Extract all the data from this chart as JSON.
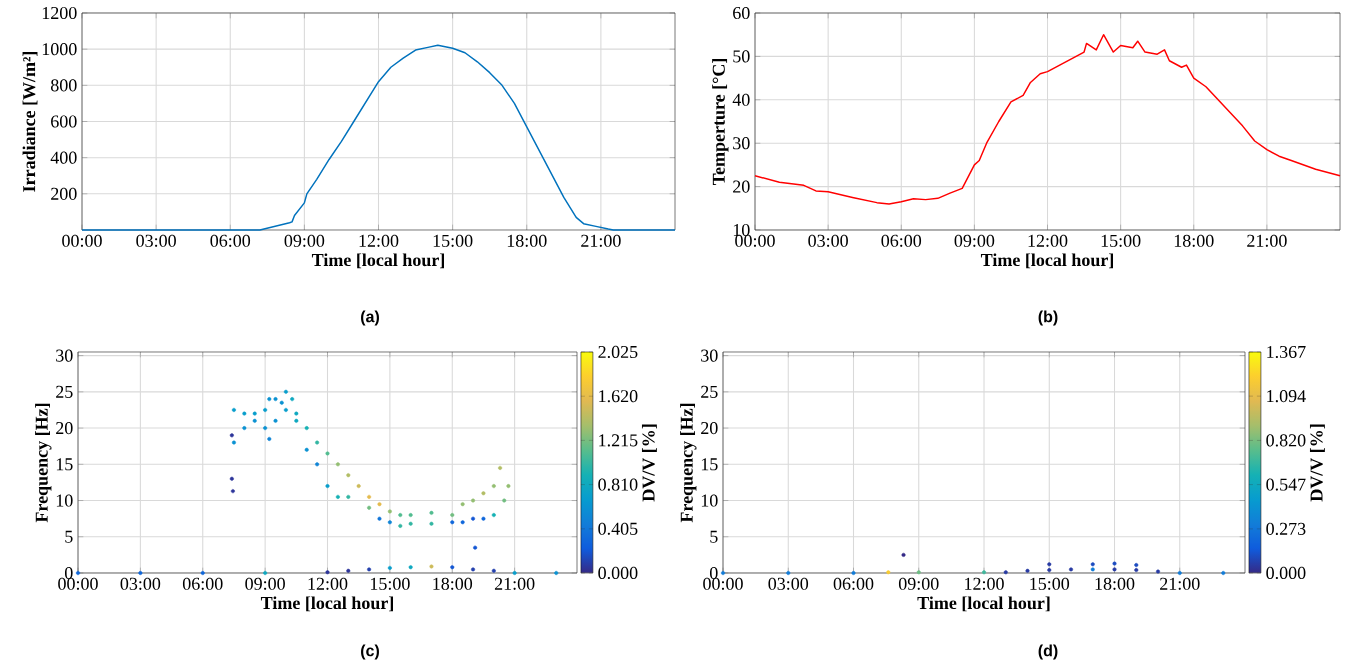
{
  "chart_data": [
    {
      "type": "line",
      "xlabel": "Time [local hour]",
      "ylabel": "Irradiance [W/m²]",
      "annotations": [
        "(a)"
      ],
      "color": "#0072bd",
      "grid": true,
      "xlim": [
        0,
        24
      ],
      "ylim": [
        0,
        1200
      ],
      "xticks": [
        {
          "value": 0,
          "label": "00:00"
        },
        {
          "value": 3,
          "label": "03:00"
        },
        {
          "value": 6,
          "label": "06:00"
        },
        {
          "value": 9,
          "label": "09:00"
        },
        {
          "value": 12,
          "label": "12:00"
        },
        {
          "value": 15,
          "label": "15:00"
        },
        {
          "value": 18,
          "label": "18:00"
        },
        {
          "value": 21,
          "label": "21:00"
        }
      ],
      "yticks": [
        200,
        400,
        600,
        800,
        1000,
        1200
      ],
      "x": [
        0,
        7.2,
        8.4,
        8.5,
        8.6,
        9.0,
        9.1,
        9.5,
        10,
        10.5,
        11,
        11.5,
        12,
        12.5,
        13,
        13.5,
        14,
        14.4,
        15,
        15.5,
        16,
        16.5,
        17,
        17.5,
        18,
        18.5,
        19,
        19.5,
        20,
        20.3,
        20.8,
        21.3,
        21.5,
        24
      ],
      "values": [
        0,
        0,
        40,
        45,
        80,
        150,
        200,
        280,
        390,
        490,
        600,
        710,
        820,
        900,
        950,
        995,
        1010,
        1022,
        1005,
        980,
        930,
        870,
        800,
        700,
        570,
        440,
        310,
        180,
        70,
        35,
        20,
        5,
        0,
        0
      ]
    },
    {
      "type": "line",
      "xlabel": "Time [local hour]",
      "ylabel": "Temperture [°C]",
      "annotations": [
        "(b)"
      ],
      "color": "#ff0000",
      "grid": true,
      "xlim": [
        0,
        24
      ],
      "ylim": [
        10,
        60
      ],
      "xticks": [
        {
          "value": 0,
          "label": "00:00"
        },
        {
          "value": 3,
          "label": "03:00"
        },
        {
          "value": 6,
          "label": "06:00"
        },
        {
          "value": 9,
          "label": "09:00"
        },
        {
          "value": 12,
          "label": "12:00"
        },
        {
          "value": 15,
          "label": "15:00"
        },
        {
          "value": 18,
          "label": "18:00"
        },
        {
          "value": 21,
          "label": "21:00"
        }
      ],
      "yticks": [
        10,
        20,
        30,
        40,
        50,
        60
      ],
      "x": [
        0,
        1,
        2,
        2.5,
        3,
        4,
        5,
        5.5,
        6,
        6.5,
        7,
        7.5,
        8,
        8.5,
        9,
        9.2,
        9.5,
        10,
        10.5,
        11,
        11.3,
        11.7,
        12,
        12.5,
        13,
        13.5,
        13.6,
        14,
        14.3,
        14.7,
        15,
        15.5,
        15.7,
        16,
        16.5,
        16.8,
        17,
        17.5,
        17.7,
        18,
        18.5,
        19,
        19.5,
        20,
        20.5,
        21,
        21.5,
        22,
        23,
        24
      ],
      "values": [
        22.5,
        21,
        20.3,
        19,
        18.8,
        17.5,
        16.3,
        16,
        16.5,
        17.2,
        17,
        17.3,
        18.5,
        19.6,
        25,
        26,
        30,
        35,
        39.5,
        41,
        44,
        46,
        46.5,
        48,
        49.5,
        51,
        53,
        51.5,
        55,
        51,
        52.5,
        52,
        53.5,
        51,
        50.5,
        51.5,
        49,
        47.5,
        48,
        45,
        43,
        40,
        37,
        34,
        30.5,
        28.5,
        27,
        26,
        24,
        22.5
      ]
    },
    {
      "type": "scatter",
      "xlabel": "Time [local hour]",
      "ylabel": "Frequency [Hz]",
      "clabel": "DV/V [%]",
      "annotations": [
        "(c)"
      ],
      "grid": true,
      "marker": "circle",
      "xlim": [
        0,
        24
      ],
      "ylim": [
        0,
        30.5
      ],
      "clim": [
        0,
        2.025
      ],
      "xticks": [
        {
          "value": 0,
          "label": "00:00"
        },
        {
          "value": 3,
          "label": "03:00"
        },
        {
          "value": 6,
          "label": "06:00"
        },
        {
          "value": 9,
          "label": "09:00"
        },
        {
          "value": 12,
          "label": "12:00"
        },
        {
          "value": 15,
          "label": "15:00"
        },
        {
          "value": 18,
          "label": "18:00"
        },
        {
          "value": 21,
          "label": "21:00"
        }
      ],
      "yticks": [
        0,
        5,
        10,
        15,
        20,
        25,
        30
      ],
      "cticks": [
        {
          "value": 0,
          "label": "0.000"
        },
        {
          "value": 0.405,
          "label": "0.405"
        },
        {
          "value": 0.81,
          "label": "0.810"
        },
        {
          "value": 1.215,
          "label": "1.215"
        },
        {
          "value": 1.62,
          "label": "1.620"
        },
        {
          "value": 2.025,
          "label": "2.025"
        }
      ],
      "x": [
        7.5,
        8,
        8.5,
        9,
        9.2,
        9.5,
        9.8,
        10,
        10.3,
        10.5,
        11,
        11.5,
        12,
        12.5,
        13,
        13.5,
        14,
        14.5,
        15,
        15.5,
        16,
        17,
        18,
        18.5,
        19,
        19.5,
        20,
        20.3,
        20.7,
        7.5,
        8,
        8.5,
        9,
        9.2,
        9.5,
        10,
        10.5,
        11,
        11.5,
        12,
        12.5,
        13,
        14,
        14.5,
        15,
        15.5,
        16,
        17,
        18,
        18.5,
        19,
        19.5,
        20,
        20.5,
        7.4,
        7.4,
        7.45,
        19.1,
        0,
        3,
        6,
        9,
        12,
        13,
        14,
        15,
        16,
        17,
        18,
        19,
        20,
        21,
        23
      ],
      "values": [
        22.5,
        22,
        22,
        22.5,
        24,
        24,
        23.5,
        25,
        24,
        22,
        20,
        18,
        16.5,
        15,
        13.5,
        12,
        10.5,
        9.5,
        8.5,
        8,
        8,
        8.3,
        8,
        9.5,
        10,
        11,
        12,
        14.5,
        12,
        18,
        20,
        21,
        20,
        18.5,
        21,
        22.5,
        21,
        17,
        15,
        12,
        10.5,
        10.5,
        9,
        7.5,
        7,
        6.5,
        6.8,
        6.8,
        7,
        7,
        7.5,
        7.5,
        8,
        10,
        19,
        13,
        11.3,
        3.5,
        0,
        0,
        0,
        0,
        0.1,
        0.3,
        0.5,
        0.7,
        0.8,
        0.9,
        0.8,
        0.5,
        0.3,
        0,
        0
      ],
      "cvalues": [
        0.7,
        0.7,
        0.7,
        0.7,
        0.6,
        0.6,
        0.6,
        0.7,
        0.8,
        0.8,
        0.9,
        1.0,
        1.1,
        1.3,
        1.4,
        1.5,
        1.6,
        1.6,
        1.3,
        1.1,
        1.1,
        1.1,
        1.2,
        1.3,
        1.3,
        1.4,
        1.3,
        1.4,
        1.3,
        0.6,
        0.6,
        0.6,
        0.6,
        0.5,
        0.6,
        0.7,
        0.8,
        0.6,
        0.5,
        0.7,
        0.9,
        1.0,
        1.2,
        0.4,
        0.5,
        1.0,
        1.0,
        1.0,
        0.3,
        0.3,
        0.2,
        0.3,
        0.9,
        1.2,
        0.05,
        0.05,
        0.05,
        0.2,
        0.3,
        0.3,
        0.3,
        0.8,
        0.05,
        0.05,
        0.1,
        0.7,
        0.8,
        1.5,
        0.2,
        0.1,
        0.1,
        0.7,
        0.6
      ]
    },
    {
      "type": "scatter",
      "xlabel": "Time [local hour]",
      "ylabel": "Frequency [Hz]",
      "clabel": "DV/V [%]",
      "annotations": [
        "(d)"
      ],
      "grid": true,
      "marker": "circle",
      "xlim": [
        0,
        24
      ],
      "ylim": [
        0,
        30.5
      ],
      "clim": [
        0,
        1.367
      ],
      "xticks": [
        {
          "value": 0,
          "label": "00:00"
        },
        {
          "value": 3,
          "label": "03:00"
        },
        {
          "value": 6,
          "label": "06:00"
        },
        {
          "value": 9,
          "label": "09:00"
        },
        {
          "value": 12,
          "label": "12:00"
        },
        {
          "value": 15,
          "label": "15:00"
        },
        {
          "value": 18,
          "label": "18:00"
        },
        {
          "value": 21,
          "label": "21:00"
        }
      ],
      "yticks": [
        0,
        5,
        10,
        15,
        20,
        25,
        30
      ],
      "cticks": [
        {
          "value": 0,
          "label": "0.000"
        },
        {
          "value": 0.273,
          "label": "0.273"
        },
        {
          "value": 0.547,
          "label": "0.547"
        },
        {
          "value": 0.82,
          "label": "0.820"
        },
        {
          "value": 1.094,
          "label": "1.094"
        },
        {
          "value": 1.367,
          "label": "1.367"
        }
      ],
      "x": [
        0,
        3,
        6,
        7.6,
        9,
        12,
        13,
        14,
        15,
        16,
        17,
        18,
        19,
        20,
        21,
        23,
        15,
        17,
        18,
        19,
        8.3
      ],
      "values": [
        0,
        0,
        0,
        0.1,
        0.1,
        0.1,
        0.1,
        0.3,
        0.4,
        0.5,
        0.5,
        0.5,
        0.4,
        0.2,
        0,
        0,
        1.2,
        1.2,
        1.3,
        1.1,
        2.5
      ],
      "cvalues": [
        0.3,
        0.3,
        0.3,
        1.2,
        0.8,
        0.7,
        0.05,
        0.05,
        0.05,
        0.05,
        0.3,
        0.05,
        0.05,
        0.05,
        0.3,
        0.3,
        0.05,
        0.1,
        0.1,
        0.1,
        0.0
      ]
    }
  ]
}
